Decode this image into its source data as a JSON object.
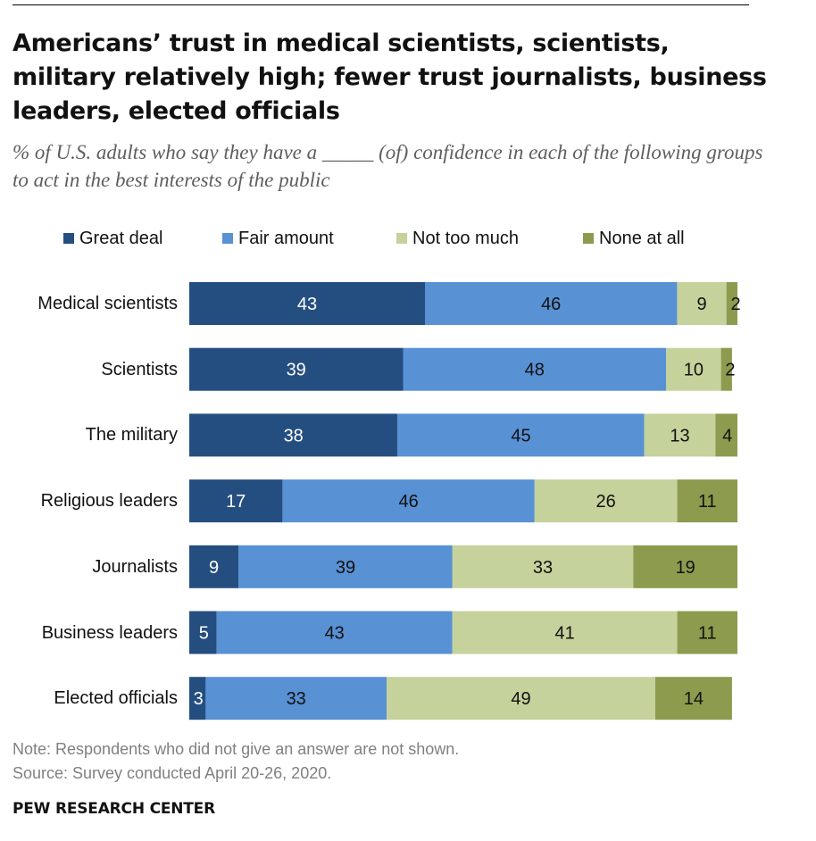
{
  "title": "Americans’ trust in medical scientists, scientists, military relatively high; fewer trust journalists, business leaders, elected officials",
  "subtitle": "% of U.S. adults who say they have a _____ (of) confidence in each of the following groups to act in the best interests of the public",
  "note": "Note: Respondents who did not give an answer are not shown.",
  "source": "Source: Survey conducted April 20-26, 2020.",
  "brand": "PEW RESEARCH CENTER",
  "colors": {
    "great_deal": "#254e80",
    "fair_amount": "#5891d4",
    "not_too_much": "#c5d29b",
    "none_at_all": "#8d9b4e",
    "label_light": "#ffffff",
    "label_dark": "#111111"
  },
  "chart_data": {
    "type": "bar",
    "orientation": "horizontal",
    "stacked": true,
    "categories": [
      "Medical scientists",
      "Scientists",
      "The military",
      "Religious leaders",
      "Journalists",
      "Business leaders",
      "Elected officials"
    ],
    "series": [
      {
        "name": "Great deal",
        "color_key": "great_deal",
        "values": [
          43,
          39,
          38,
          17,
          9,
          5,
          3
        ]
      },
      {
        "name": "Fair amount",
        "color_key": "fair_amount",
        "values": [
          46,
          48,
          45,
          46,
          39,
          43,
          33
        ]
      },
      {
        "name": "Not too much",
        "color_key": "not_too_much",
        "values": [
          9,
          10,
          13,
          26,
          33,
          41,
          49
        ]
      },
      {
        "name": "None at all",
        "color_key": "none_at_all",
        "values": [
          2,
          2,
          4,
          11,
          19,
          11,
          14
        ]
      }
    ],
    "xlim": [
      0,
      100
    ],
    "legend_position": "top",
    "grid": false,
    "xlabel": "",
    "ylabel": ""
  }
}
